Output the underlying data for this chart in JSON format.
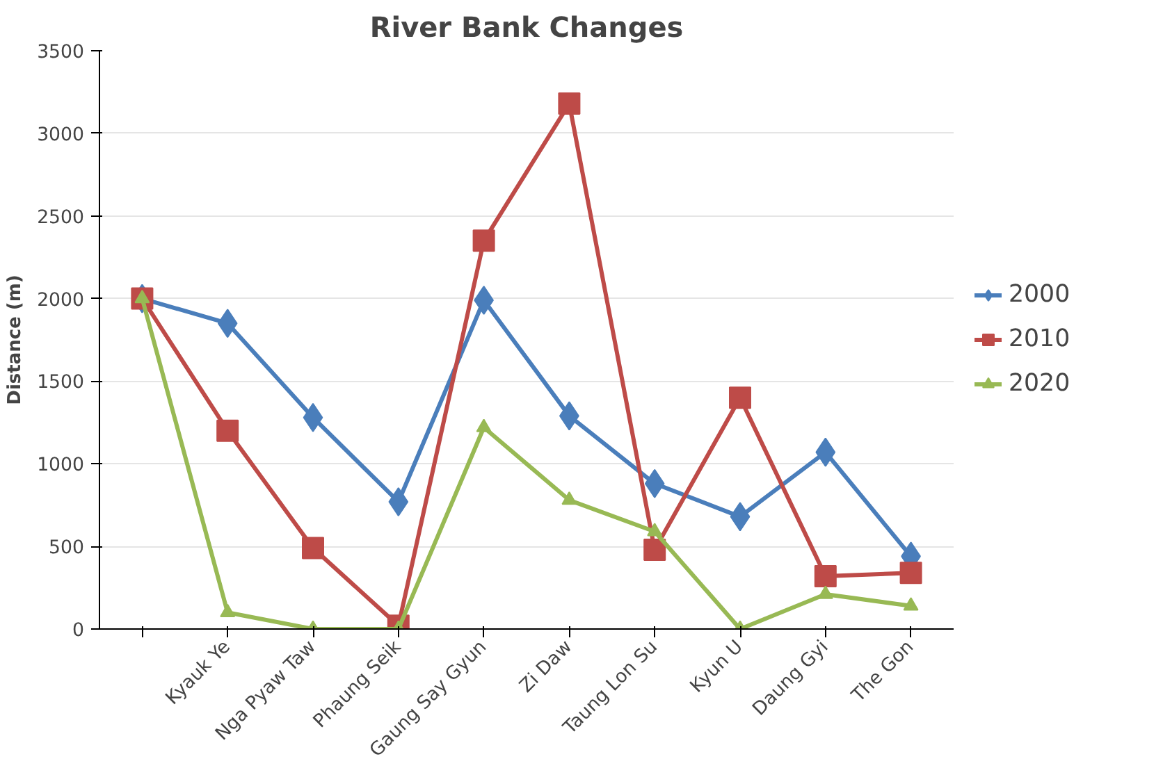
{
  "chart_data": {
    "type": "line",
    "title": "River Bank Changes",
    "ylabel": "Distance (m)",
    "categories": [
      null,
      "Kyauk Ye",
      "Nga Pyaw Taw",
      "Phaung Seik",
      "Gaung Say Gyun",
      "Zi Daw",
      "Taung Lon Su",
      "Kyun U",
      "Daung Gyi",
      "The Gon"
    ],
    "series": [
      {
        "name": "2000",
        "color": "#4a7ebb",
        "marker": "diamond",
        "values": [
          2000,
          1850,
          1280,
          770,
          1990,
          1290,
          880,
          680,
          1070,
          440
        ]
      },
      {
        "name": "2010",
        "color": "#be4b48",
        "marker": "square",
        "values": [
          2000,
          1200,
          490,
          20,
          2350,
          3180,
          480,
          1400,
          320,
          340
        ]
      },
      {
        "name": "2020",
        "color": "#98b954",
        "marker": "triangle",
        "values": [
          2000,
          100,
          0,
          0,
          1220,
          780,
          590,
          0,
          210,
          140
        ]
      }
    ],
    "ylim": [
      0,
      3500
    ],
    "yticks": [
      0,
      500,
      1000,
      1500,
      2000,
      2500,
      3000,
      3500
    ],
    "grid": "y",
    "legend": "right",
    "line_style": "solid"
  }
}
